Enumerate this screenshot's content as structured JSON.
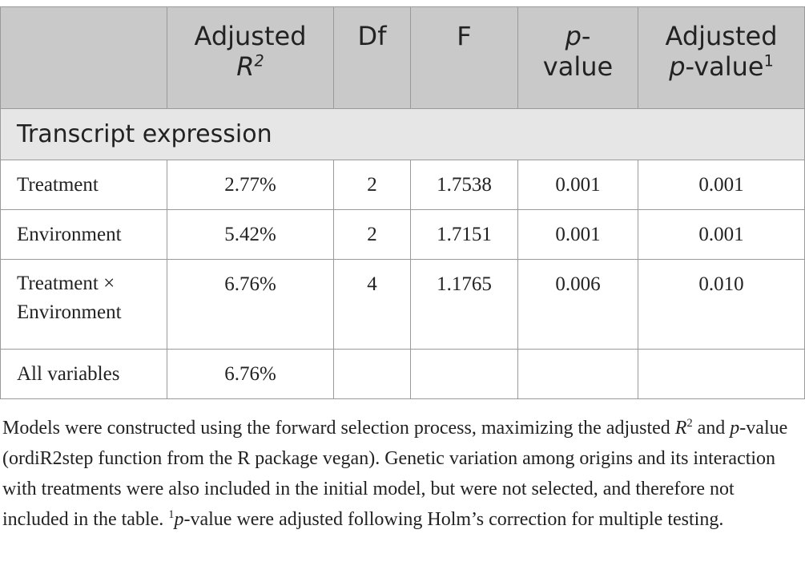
{
  "table": {
    "headers": {
      "col1": "",
      "adjusted_r2": "Adjusted",
      "adjusted_r2_symbol": "R",
      "adjusted_r2_sup": "2",
      "df": "Df",
      "f": "F",
      "pvalue_p": "p",
      "pvalue_dash": "-",
      "pvalue_word": "value",
      "adj_pvalue_word": "Adjusted",
      "adj_pvalue_p": "p",
      "adj_pvalue_rest": "-value",
      "adj_pvalue_sup": "1"
    },
    "section": "Transcript expression",
    "rows": [
      {
        "label": "Treatment",
        "r2": "2.77%",
        "df": "2",
        "f": "1.7538",
        "p": "0.001",
        "adj_p": "0.001"
      },
      {
        "label": "Environment",
        "r2": "5.42%",
        "df": "2",
        "f": "1.7151",
        "p": "0.001",
        "adj_p": "0.001"
      },
      {
        "label_line1": "Treatment ×",
        "label_line2": "Environment",
        "r2": "6.76%",
        "df": "4",
        "f": "1.1765",
        "p": "0.006",
        "adj_p": "0.010"
      },
      {
        "label": "All variables",
        "r2": "6.76%",
        "df": "",
        "f": "",
        "p": "",
        "adj_p": ""
      }
    ]
  },
  "footnote": {
    "part1": "Models were constructed using the forward selection process, maximizing the adjusted ",
    "r": "R",
    "r_sup": "2",
    "part2": " and ",
    "p1": "p",
    "part3": "-value (ordiR2step function from the R package vegan). Genetic variation among origins and its interaction with treatments were also included in the initial model, but were not selected, and therefore not included in the table. ",
    "sup1": "1",
    "p2": "p",
    "part4": "-value were adjusted following Holm’s correction for multiple testing."
  }
}
